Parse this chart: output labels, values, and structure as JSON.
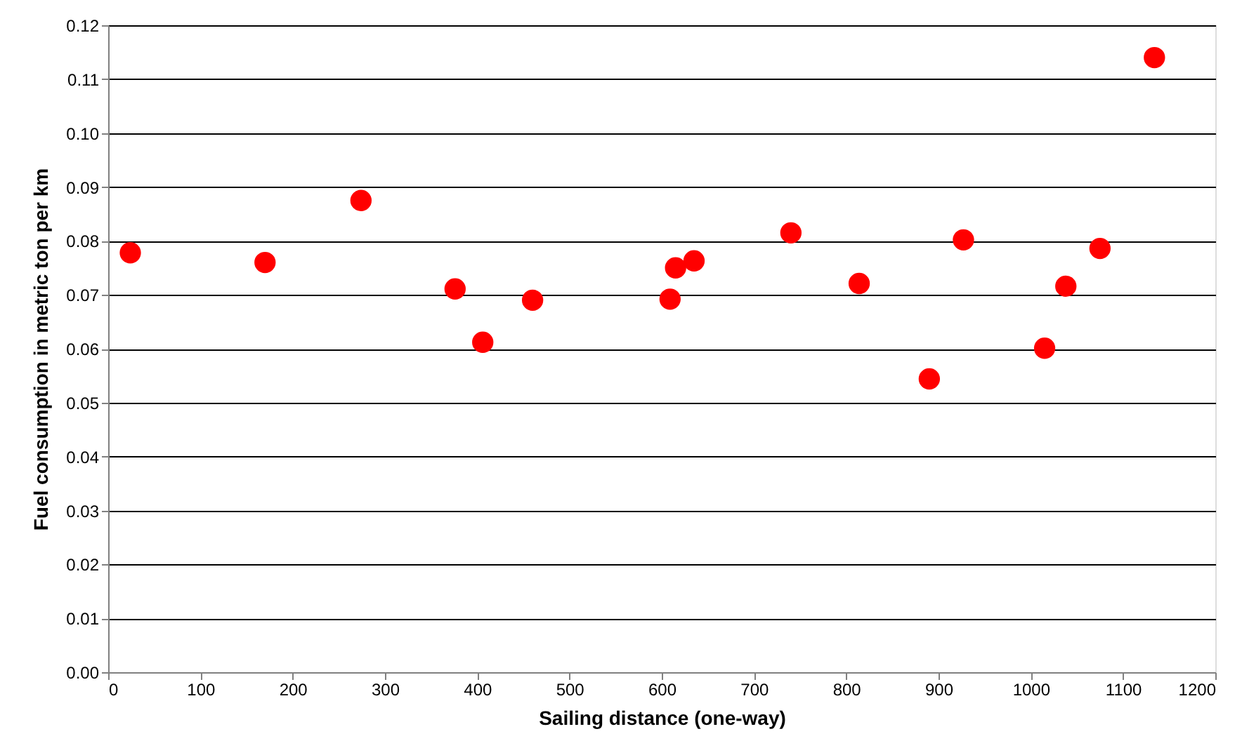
{
  "chart_data": {
    "type": "scatter",
    "xlabel": "Sailing distance (one-way)",
    "ylabel": "Fuel consumption in metric ton per km",
    "x": [
      24,
      170,
      274,
      376,
      406,
      460,
      609,
      615,
      635,
      740,
      814,
      890,
      927,
      1015,
      1038,
      1075,
      1134
    ],
    "series": [
      {
        "color": "#ff0000",
        "values": [
          0.0778,
          0.076,
          0.0875,
          0.0711,
          0.0612,
          0.069,
          0.0692,
          0.075,
          0.0763,
          0.0815,
          0.0721,
          0.0544,
          0.0802,
          0.0601,
          0.0716,
          0.0786,
          0.114
        ]
      }
    ],
    "xlim": [
      0,
      1200
    ],
    "xticks": [
      0,
      100,
      200,
      300,
      400,
      500,
      600,
      700,
      800,
      900,
      1000,
      1100,
      1200
    ],
    "ylim": [
      0,
      0.12
    ],
    "yticks": [
      {
        "value": 0,
        "label": "0.00"
      },
      {
        "value": 0.01,
        "label": "0.01"
      },
      {
        "value": 0.02,
        "label": "0.02"
      },
      {
        "value": 0.03,
        "label": "0.03"
      },
      {
        "value": 0.04,
        "label": "0.04"
      },
      {
        "value": 0.05,
        "label": "0.05"
      },
      {
        "value": 0.06,
        "label": "0.06"
      },
      {
        "value": 0.07,
        "label": "0.07"
      },
      {
        "value": 0.08,
        "label": "0.08"
      },
      {
        "value": 0.09,
        "label": "0.09"
      },
      {
        "value": 0.1,
        "label": "0.10"
      },
      {
        "value": 0.11,
        "label": "0.11"
      },
      {
        "value": 0.12,
        "label": "0.12"
      }
    ],
    "grid": "y",
    "marker": "circle"
  }
}
